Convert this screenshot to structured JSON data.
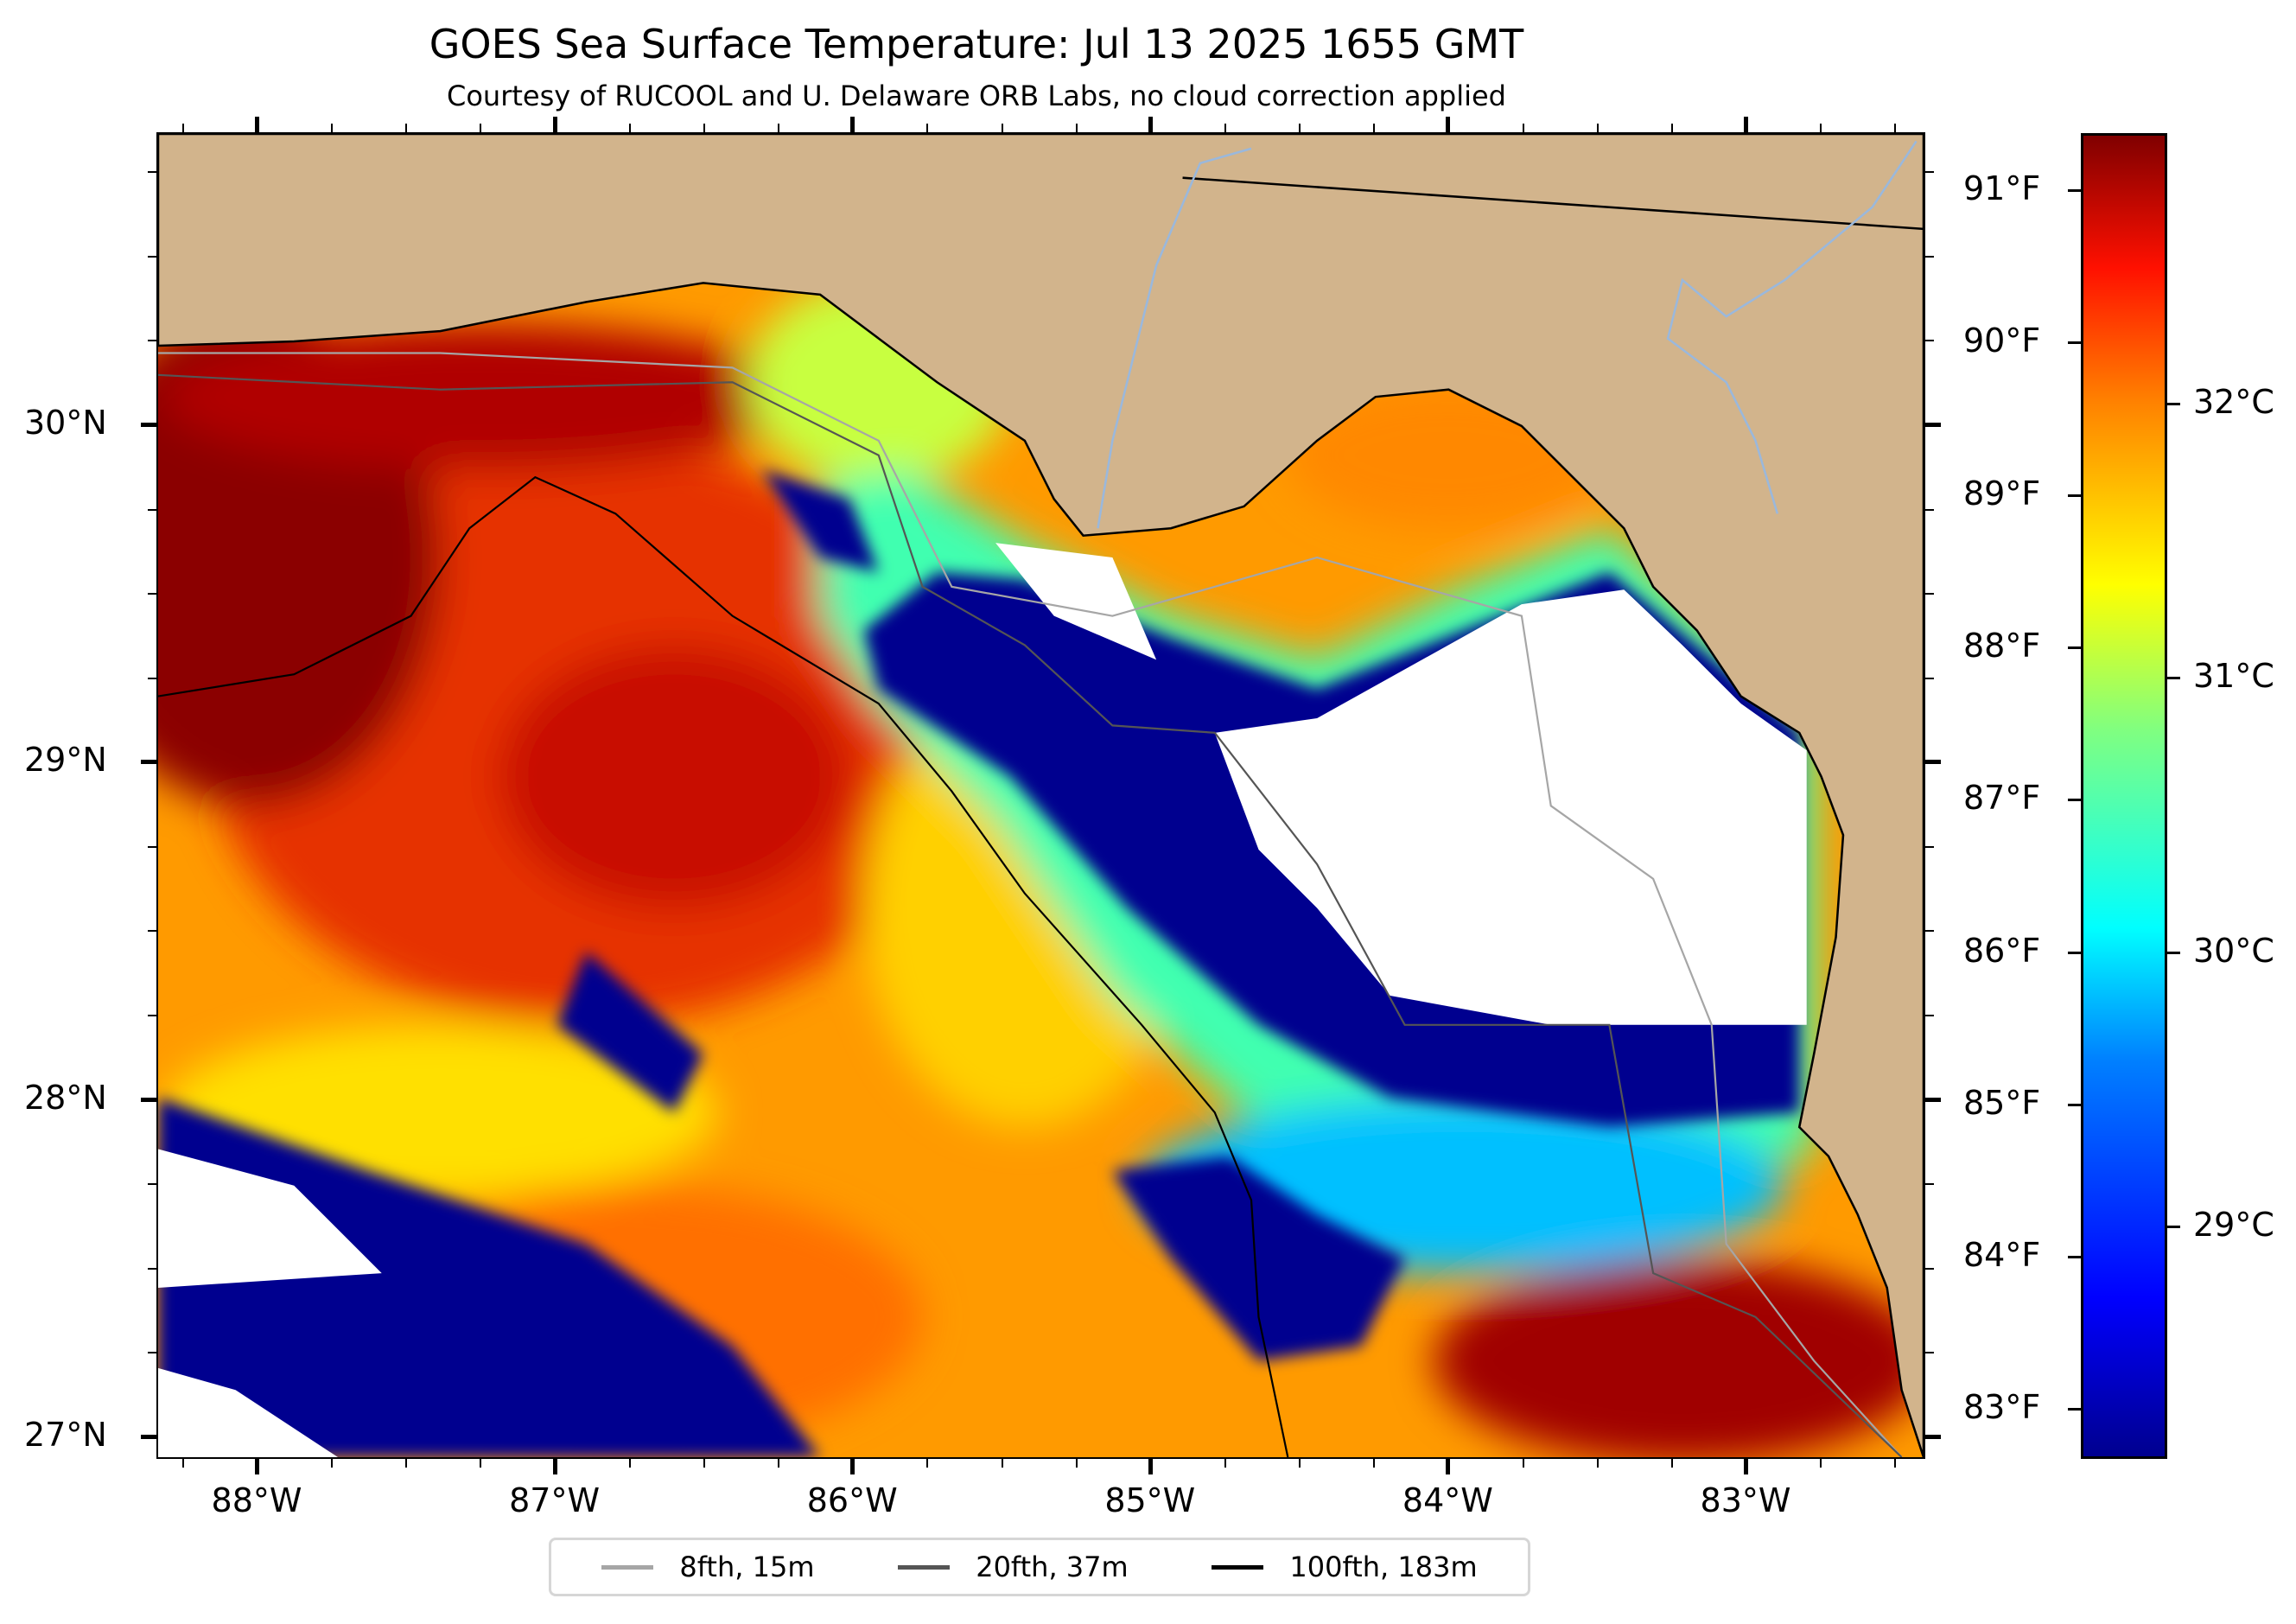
{
  "chart_data": {
    "type": "heatmap",
    "title": "GOES Sea Surface Temperature: Jul 13 2025 1655 GMT",
    "subtitle": "Courtesy of RUCOOL and U. Delaware ORB Labs, no cloud correction applied",
    "x_ticks": [
      {
        "value": -88,
        "label": "88°W"
      },
      {
        "value": -87,
        "label": "87°W"
      },
      {
        "value": -86,
        "label": "86°W"
      },
      {
        "value": -85,
        "label": "85°W"
      },
      {
        "value": -84,
        "label": "84°W"
      },
      {
        "value": -83,
        "label": "83°W"
      }
    ],
    "y_ticks": [
      {
        "value": 30,
        "label": "30°N"
      },
      {
        "value": 29,
        "label": "29°N"
      },
      {
        "value": 28,
        "label": "28°N"
      },
      {
        "value": 27,
        "label": "27°N"
      }
    ],
    "xlim": [
      -88.33,
      -82.4
    ],
    "ylim": [
      26.93,
      30.86
    ],
    "colorbar": {
      "colormap": "jet",
      "range_f": [
        82.7,
        91.3
      ],
      "fahrenheit_ticks": [
        {
          "value": 91,
          "label": "91°F"
        },
        {
          "value": 90,
          "label": "90°F"
        },
        {
          "value": 89,
          "label": "89°F"
        },
        {
          "value": 88,
          "label": "88°F"
        },
        {
          "value": 87,
          "label": "87°F"
        },
        {
          "value": 86,
          "label": "86°F"
        },
        {
          "value": 85,
          "label": "85°F"
        },
        {
          "value": 84,
          "label": "84°F"
        },
        {
          "value": 83,
          "label": "83°F"
        }
      ],
      "celsius_ticks": [
        {
          "value": 32,
          "label": "32°C"
        },
        {
          "value": 31,
          "label": "31°C"
        },
        {
          "value": 30,
          "label": "30°C"
        },
        {
          "value": 29,
          "label": "29°C"
        }
      ]
    },
    "legend": {
      "placement": "bottom-center",
      "entries": [
        {
          "label": "8fth, 15m",
          "color": "#a6a6a6"
        },
        {
          "label": "20fth, 37m",
          "color": "#555555"
        },
        {
          "label": "100fth, 183m",
          "color": "#000000"
        }
      ]
    },
    "colors": {
      "land": "#d2b48c",
      "cloud": "#ffffff",
      "river": "#9ab8dc"
    }
  }
}
